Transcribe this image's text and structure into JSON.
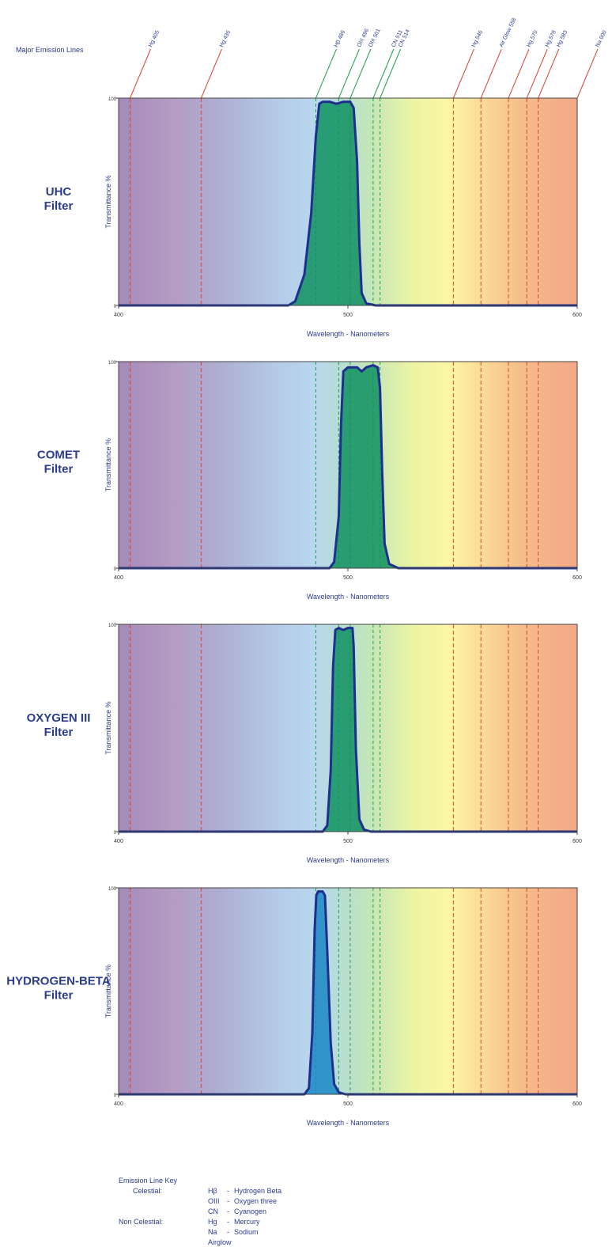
{
  "emission_lines_label": "Major Emission Lines",
  "chart_data": [
    {
      "type": "area",
      "title": "UHC\nFilter",
      "xlabel": "Wavelength - Nanometers",
      "ylabel": "Transmittance %",
      "xlim": [
        400,
        600
      ],
      "ylim": [
        0,
        100
      ],
      "x_ticks": [
        "400",
        "500",
        "600"
      ],
      "y_ticks": [
        "0",
        "100"
      ],
      "curve": [
        [
          400,
          0
        ],
        [
          474,
          0
        ],
        [
          477,
          2
        ],
        [
          481,
          15
        ],
        [
          484,
          45
        ],
        [
          486,
          82
        ],
        [
          487.5,
          98
        ],
        [
          489,
          99
        ],
        [
          492,
          99
        ],
        [
          495,
          98
        ],
        [
          498,
          99
        ],
        [
          501,
          99
        ],
        [
          502.5,
          96
        ],
        [
          504,
          70
        ],
        [
          505,
          30
        ],
        [
          506,
          6
        ],
        [
          508,
          1
        ],
        [
          512,
          0
        ],
        [
          600,
          0
        ]
      ]
    },
    {
      "type": "area",
      "title": "COMET\nFilter",
      "xlabel": "Wavelength - Nanometers",
      "ylabel": "Transmittance %",
      "xlim": [
        400,
        600
      ],
      "ylim": [
        0,
        100
      ],
      "x_ticks": [
        "400",
        "500",
        "600"
      ],
      "y_ticks": [
        "0",
        "100"
      ],
      "curve": [
        [
          400,
          0
        ],
        [
          492,
          0
        ],
        [
          494,
          3
        ],
        [
          496,
          25
        ],
        [
          497,
          70
        ],
        [
          498,
          96
        ],
        [
          500,
          98
        ],
        [
          504,
          98
        ],
        [
          506,
          96
        ],
        [
          508,
          98
        ],
        [
          511,
          99
        ],
        [
          513,
          98
        ],
        [
          514,
          88
        ],
        [
          515,
          45
        ],
        [
          516,
          12
        ],
        [
          518,
          2
        ],
        [
          522,
          0
        ],
        [
          600,
          0
        ]
      ]
    },
    {
      "type": "area",
      "title": "OXYGEN III\nFilter",
      "xlabel": "Wavelength - Nanometers",
      "ylabel": "Transmittance %",
      "xlim": [
        400,
        600
      ],
      "ylim": [
        0,
        100
      ],
      "x_ticks": [
        "400",
        "500",
        "600"
      ],
      "y_ticks": [
        "0",
        "100"
      ],
      "curve": [
        [
          400,
          0
        ],
        [
          489,
          0
        ],
        [
          491,
          3
        ],
        [
          492.5,
          30
        ],
        [
          493.5,
          80
        ],
        [
          494.5,
          98
        ],
        [
          496,
          99
        ],
        [
          498,
          98
        ],
        [
          500,
          99
        ],
        [
          502,
          99
        ],
        [
          502.5,
          90
        ],
        [
          503.5,
          40
        ],
        [
          505,
          6
        ],
        [
          507,
          1
        ],
        [
          510,
          0
        ],
        [
          600,
          0
        ]
      ]
    },
    {
      "type": "area",
      "title": "HYDROGEN-BETA\nFilter",
      "xlabel": "Wavelength - Nanometers",
      "ylabel": "Transmittance %",
      "xlim": [
        400,
        600
      ],
      "ylim": [
        0,
        100
      ],
      "x_ticks": [
        "400",
        "500",
        "600"
      ],
      "y_ticks": [
        "0",
        "100"
      ],
      "curve": [
        [
          400,
          0
        ],
        [
          481,
          0
        ],
        [
          483,
          3
        ],
        [
          484.5,
          30
        ],
        [
          485.5,
          80
        ],
        [
          486.2,
          97
        ],
        [
          487,
          99
        ],
        [
          489,
          99
        ],
        [
          490,
          97
        ],
        [
          491,
          70
        ],
        [
          492.5,
          25
        ],
        [
          494,
          5
        ],
        [
          496,
          1
        ],
        [
          499,
          0
        ],
        [
          600,
          0
        ]
      ]
    }
  ],
  "emission_lines": [
    {
      "label": "Hg 405",
      "nm": 405,
      "type": "non-celestial",
      "color": "#d8452f"
    },
    {
      "label": "Hg 436",
      "nm": 436,
      "type": "non-celestial",
      "color": "#d8452f"
    },
    {
      "label": "Hβ 486",
      "nm": 486,
      "type": "celestial",
      "color": "#20a050"
    },
    {
      "label": "OIII 496",
      "nm": 496,
      "type": "celestial",
      "color": "#20a050"
    },
    {
      "label": "OIII 501",
      "nm": 501,
      "type": "celestial",
      "color": "#20a050"
    },
    {
      "label": "CN 511",
      "nm": 511,
      "type": "celestial",
      "color": "#20a050"
    },
    {
      "label": "CN 514",
      "nm": 514,
      "type": "celestial",
      "color": "#20a050"
    },
    {
      "label": "Hg 546",
      "nm": 546,
      "type": "non-celestial",
      "color": "#d8452f"
    },
    {
      "label": "Air Glow 558",
      "nm": 558,
      "type": "non-celestial",
      "color": "#d8452f"
    },
    {
      "label": "Hg 570",
      "nm": 570,
      "type": "non-celestial",
      "color": "#d8452f"
    },
    {
      "label": "Hg 578",
      "nm": 578,
      "type": "non-celestial",
      "color": "#d8452f"
    },
    {
      "label": "Hg 583",
      "nm": 583,
      "type": "non-celestial",
      "color": "#d8452f"
    },
    {
      "label": "Na 600",
      "nm": 600,
      "type": "non-celestial",
      "color": "#d8452f"
    }
  ],
  "key": {
    "title": "Emission Line Key",
    "rows": [
      {
        "group": "Celestial:",
        "symbol": "Hβ",
        "dash": "-",
        "name": "Hydrogen Beta"
      },
      {
        "group": "",
        "symbol": "OIII",
        "dash": "-",
        "name": "Oxygen three"
      },
      {
        "group": "",
        "symbol": "CN",
        "dash": "-",
        "name": "Cyanogen"
      },
      {
        "group": "Non Celestial:",
        "symbol": "Hg",
        "dash": "-",
        "name": "Mercury"
      },
      {
        "group": "",
        "symbol": "Na",
        "dash": "-",
        "name": "Sodium"
      },
      {
        "group": "",
        "symbol": "Airglow",
        "dash": "",
        "name": ""
      }
    ]
  },
  "colors": {
    "curve_stroke": "#1f2f8f",
    "filter_fill": "#0f9060",
    "filter_fill_blue": "#1a88c4",
    "text_blue": "#2a3c8c",
    "label_red": "#d8452f",
    "label_green": "#20a050"
  }
}
